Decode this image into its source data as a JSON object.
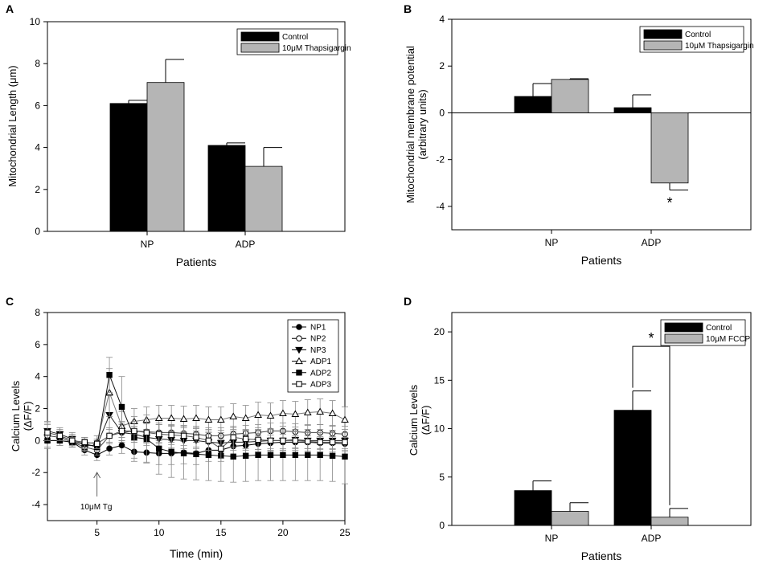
{
  "chart_data": [
    {
      "panel": "A",
      "type": "bar",
      "title": "",
      "xlabel": "Patients",
      "ylabel": "Mitochondrial Length (μm)",
      "ylim": [
        0,
        10
      ],
      "yticks": [
        "0",
        "2",
        "4",
        "6",
        "8",
        "10"
      ],
      "categories": [
        "NP",
        "ADP"
      ],
      "series": [
        {
          "name": "Control",
          "color": "#000000",
          "values": [
            6.1,
            4.1
          ],
          "errors": [
            0.15,
            0.12
          ]
        },
        {
          "name": "10μM Thapsigargin",
          "color": "#b5b5b5",
          "values": [
            7.1,
            3.1
          ],
          "errors": [
            1.1,
            0.9
          ]
        }
      ],
      "legend": "top-right"
    },
    {
      "panel": "B",
      "type": "bar",
      "title": "",
      "xlabel": "Patients",
      "ylabel": "Mitochondrial membrane potential (arbitrary units)",
      "ylabel_lines": [
        "Mitochondrial membrane potential",
        "(arbitrary units)"
      ],
      "ylim": [
        -5,
        4
      ],
      "yticks": [
        "-4",
        "-2",
        "0",
        "2",
        "4"
      ],
      "categories": [
        "NP",
        "ADP"
      ],
      "series": [
        {
          "name": "Control",
          "color": "#000000",
          "values": [
            0.7,
            0.22
          ],
          "errors": [
            0.55,
            0.55
          ]
        },
        {
          "name": "10μM Thapsigargin",
          "color": "#b5b5b5",
          "values": [
            1.43,
            -3.0
          ],
          "errors": [
            0.03,
            0.3
          ]
        }
      ],
      "annotations": [
        "*"
      ],
      "legend": "top-right"
    },
    {
      "panel": "C",
      "type": "line",
      "title": "",
      "xlabel": "Time (min)",
      "ylabel": "Calcium Levels (ΔF/F)",
      "ylabel_lines": [
        "Calcium Levels",
        "(ΔF/F)"
      ],
      "xlim": [
        1,
        25
      ],
      "ylim": [
        -5,
        8
      ],
      "xticks": [
        "5",
        "10",
        "15",
        "20",
        "25"
      ],
      "yticks": [
        "-4",
        "-2",
        "0",
        "2",
        "4",
        "6",
        "8"
      ],
      "x": [
        1,
        2,
        3,
        4,
        5,
        6,
        7,
        8,
        9,
        10,
        11,
        12,
        13,
        14,
        15,
        16,
        17,
        18,
        19,
        20,
        21,
        22,
        23,
        24,
        25
      ],
      "series": [
        {
          "name": "NP1",
          "marker": "circle-filled",
          "color": "#000000",
          "values": [
            0.0,
            0.0,
            -0.1,
            -0.6,
            -0.9,
            -0.5,
            -0.3,
            -0.7,
            -0.75,
            -0.8,
            -0.8,
            -0.75,
            -0.8,
            -0.6,
            -0.6,
            -0.35,
            -0.3,
            -0.2,
            -0.15,
            -0.1,
            -0.1,
            -0.1,
            -0.15,
            -0.15,
            -0.2
          ],
          "errors": [
            0.5,
            0.3,
            0.3,
            0.3,
            0.35,
            0.4,
            0.5,
            0.6,
            0.6,
            0.7,
            0.7,
            0.7,
            0.7,
            0.7,
            0.7,
            0.6,
            0.6,
            0.5,
            0.5,
            0.5,
            0.4,
            0.4,
            0.4,
            0.4,
            0.4
          ]
        },
        {
          "name": "NP2",
          "marker": "circle-open",
          "color": "#000000",
          "values": [
            0.3,
            0.2,
            -0.1,
            -0.4,
            -0.6,
            0.3,
            0.5,
            0.6,
            0.55,
            0.5,
            0.5,
            0.45,
            0.4,
            0.3,
            0.3,
            0.4,
            0.45,
            0.5,
            0.6,
            0.6,
            0.55,
            0.5,
            0.5,
            0.45,
            0.4
          ],
          "errors": [
            0.4,
            0.3,
            0.3,
            0.3,
            0.3,
            0.4,
            0.5,
            0.5,
            0.5,
            0.5,
            0.5,
            0.5,
            0.5,
            0.5,
            0.5,
            0.5,
            0.5,
            0.5,
            0.5,
            0.5,
            0.5,
            0.5,
            0.5,
            0.5,
            0.5
          ]
        },
        {
          "name": "NP3",
          "marker": "triangle-down-filled",
          "color": "#000000",
          "values": [
            0.6,
            0.4,
            0.1,
            -0.3,
            -0.3,
            1.6,
            0.5,
            0.4,
            0.2,
            0.1,
            0.05,
            0.0,
            0.0,
            -0.1,
            -0.15,
            -0.1,
            -0.1,
            -0.05,
            0.0,
            0.0,
            0.05,
            0.0,
            0.0,
            0.0,
            0.0
          ],
          "errors": [
            0.6,
            0.4,
            0.4,
            0.3,
            0.3,
            1.2,
            0.6,
            0.5,
            0.5,
            0.5,
            0.5,
            0.5,
            0.5,
            0.5,
            0.5,
            0.5,
            0.5,
            0.5,
            0.5,
            0.5,
            0.5,
            0.5,
            0.5,
            0.5,
            0.5
          ]
        },
        {
          "name": "ADP1",
          "marker": "triangle-up-open",
          "color": "#000000",
          "values": [
            0.5,
            0.3,
            0.0,
            -0.2,
            -0.1,
            3.0,
            0.9,
            1.2,
            1.3,
            1.4,
            1.4,
            1.35,
            1.4,
            1.3,
            1.3,
            1.5,
            1.4,
            1.6,
            1.55,
            1.7,
            1.65,
            1.75,
            1.8,
            1.7,
            1.3
          ],
          "errors": [
            0.6,
            0.4,
            0.4,
            0.4,
            0.4,
            1.5,
            0.9,
            0.8,
            0.8,
            0.8,
            0.8,
            0.8,
            0.8,
            0.8,
            0.8,
            0.8,
            0.8,
            0.8,
            0.8,
            0.8,
            0.8,
            0.8,
            0.8,
            0.8,
            0.8
          ]
        },
        {
          "name": "ADP2",
          "marker": "square-filled",
          "color": "#000000",
          "values": [
            0.0,
            0.0,
            -0.1,
            -0.2,
            -0.4,
            4.1,
            2.1,
            0.2,
            0.1,
            -0.5,
            -0.7,
            -0.8,
            -0.85,
            -0.9,
            -0.95,
            -1.0,
            -0.95,
            -0.9,
            -0.9,
            -0.9,
            -0.9,
            -0.9,
            -0.9,
            -0.95,
            -1.0
          ],
          "errors": [
            0.4,
            0.3,
            0.3,
            0.3,
            0.3,
            1.1,
            1.9,
            1.3,
            1.5,
            1.6,
            1.6,
            1.6,
            1.6,
            1.6,
            1.6,
            1.6,
            1.6,
            1.6,
            1.6,
            1.6,
            1.6,
            1.6,
            1.6,
            1.6,
            1.7
          ]
        },
        {
          "name": "ADP3",
          "marker": "square-open",
          "color": "#000000",
          "values": [
            0.5,
            0.3,
            0.0,
            -0.1,
            -0.2,
            0.3,
            0.6,
            0.6,
            0.5,
            0.4,
            0.35,
            0.3,
            0.2,
            0.0,
            -0.5,
            0.2,
            0.1,
            0.05,
            0.0,
            0.0,
            0.0,
            -0.05,
            -0.1,
            -0.1,
            -0.1
          ],
          "errors": [
            0.5,
            0.3,
            0.3,
            0.3,
            0.3,
            0.5,
            0.6,
            0.6,
            0.6,
            0.6,
            0.6,
            0.6,
            0.6,
            0.6,
            0.6,
            0.6,
            0.6,
            0.6,
            0.6,
            0.6,
            0.6,
            0.6,
            0.6,
            0.6,
            0.6
          ]
        }
      ],
      "annotations": [
        "10μM Tg"
      ],
      "annotation_x": 5,
      "legend": "top-right"
    },
    {
      "panel": "D",
      "type": "bar",
      "title": "",
      "xlabel": "Patients",
      "ylabel": "Calcium Levels (ΔF/F)",
      "ylabel_lines": [
        "Calcium Levels",
        "(ΔF/F)"
      ],
      "ylim": [
        0,
        22
      ],
      "yticks": [
        "0",
        "5",
        "10",
        "15",
        "20"
      ],
      "categories": [
        "NP",
        "ADP"
      ],
      "series": [
        {
          "name": "Control",
          "color": "#000000",
          "values": [
            3.6,
            11.9
          ],
          "errors": [
            1.0,
            2.0
          ]
        },
        {
          "name": "10μM FCCP",
          "color": "#b5b5b5",
          "values": [
            1.45,
            0.85
          ],
          "errors": [
            0.9,
            0.9
          ]
        }
      ],
      "annotations": [
        "*"
      ],
      "legend": "top-right"
    }
  ]
}
